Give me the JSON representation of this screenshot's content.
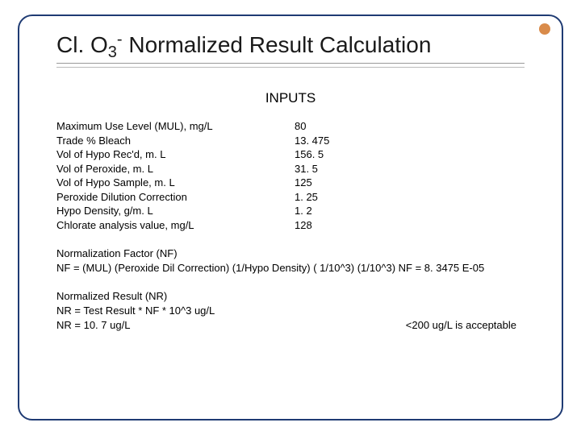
{
  "title": {
    "prefix": "Cl. O",
    "sub": "3",
    "sup": "-",
    "rest": " Normalized Result Calculation"
  },
  "inputs_header": "INPUTS",
  "inputs": [
    {
      "label": "Maximum Use Level (MUL), mg/L",
      "value": "80"
    },
    {
      "label": "Trade % Bleach",
      "value": "13. 475"
    },
    {
      "label": "Vol of Hypo Rec'd, m. L",
      "value": "156. 5"
    },
    {
      "label": "Vol of Peroxide, m. L",
      "value": "31. 5"
    },
    {
      "label": "Vol of Hypo Sample, m. L",
      "value": "125"
    },
    {
      "label": "Peroxide Dilution Correction",
      "value": "1. 25"
    },
    {
      "label": "Hypo Density, g/m. L",
      "value": "1. 2"
    },
    {
      "label": "Chlorate analysis value, mg/L",
      "value": "128"
    }
  ],
  "nf": {
    "heading": "Normalization Factor (NF)",
    "formula": "NF = (MUL) (Peroxide Dil Correction) (1/Hypo Density) ( 1/10^3) (1/10^3) NF =  8. 3475 E-05"
  },
  "nr": {
    "heading": "Normalized Result (NR)",
    "line1": "NR = Test Result * NF * 10^3 ug/L",
    "line2": "NR =  10. 7 ug/L",
    "acceptable": "<200 ug/L is acceptable"
  },
  "colors": {
    "frame_border": "#1f3b73",
    "corner_accent": "#d98b4a",
    "text": "#000000",
    "background": "#ffffff"
  }
}
